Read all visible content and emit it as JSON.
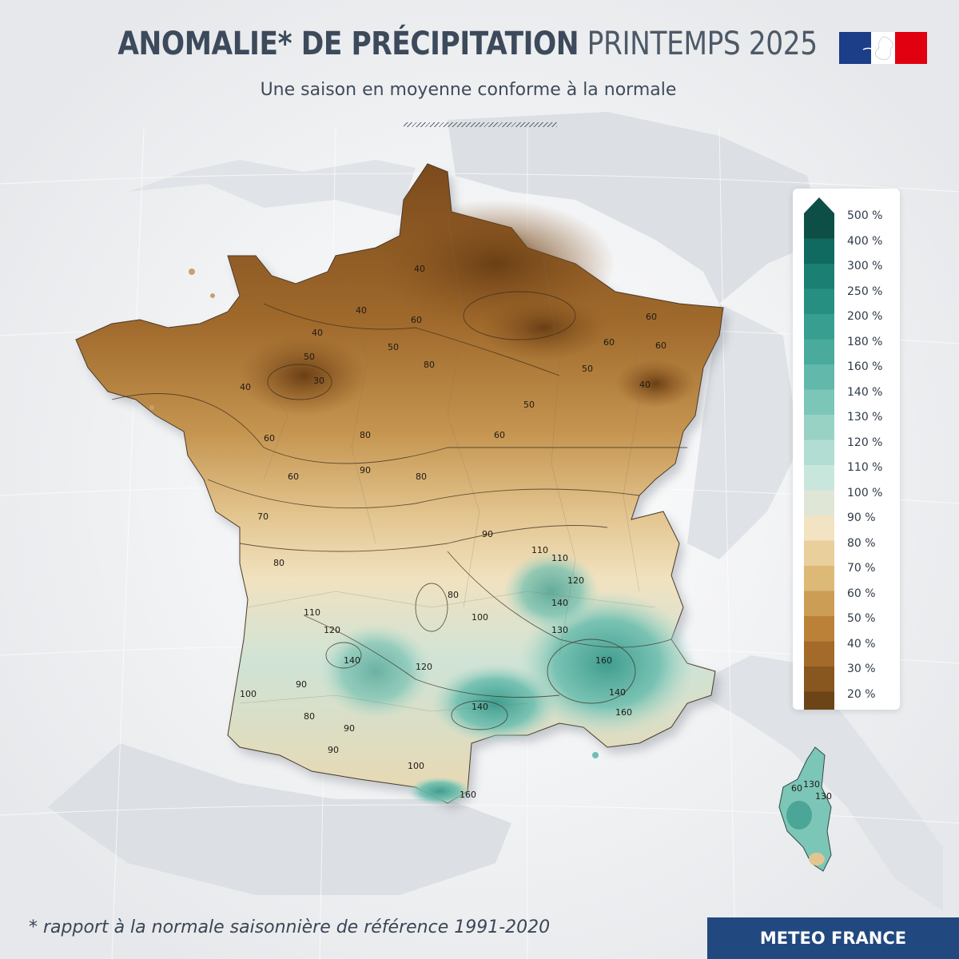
{
  "header": {
    "title_bold": "ANOMALIE* DE PRÉCIPITATION",
    "title_light": "PRINTEMPS 2025",
    "subtitle": "Une saison en moyenne conforme à la normale"
  },
  "legend": {
    "items": [
      {
        "label": "500 %",
        "color": "#0d4f46"
      },
      {
        "label": "400 %",
        "color": "#116a5f"
      },
      {
        "label": "300 %",
        "color": "#1b7f73"
      },
      {
        "label": "250 %",
        "color": "#278f82"
      },
      {
        "label": "200 %",
        "color": "#379e90"
      },
      {
        "label": "180 %",
        "color": "#4aab9d"
      },
      {
        "label": "160 %",
        "color": "#62b8aa"
      },
      {
        "label": "140 %",
        "color": "#7cc6b8"
      },
      {
        "label": "130 %",
        "color": "#98d2c5"
      },
      {
        "label": "120 %",
        "color": "#b2ddd2"
      },
      {
        "label": "110 %",
        "color": "#c9e6dd"
      },
      {
        "label": "100 %",
        "color": "#dfe6d5"
      },
      {
        "label": "90 %",
        "color": "#f2e3c2"
      },
      {
        "label": "80 %",
        "color": "#e8cf9c"
      },
      {
        "label": "70 %",
        "color": "#ddb978"
      },
      {
        "label": "60 %",
        "color": "#cc9d55"
      },
      {
        "label": "50 %",
        "color": "#bc8139"
      },
      {
        "label": "40 %",
        "color": "#a36a29"
      },
      {
        "label": "30 %",
        "color": "#88561f"
      },
      {
        "label": "20 %",
        "color": "#6c4418"
      }
    ]
  },
  "map": {
    "contour_labels": [
      "40",
      "40",
      "40",
      "50",
      "30",
      "40",
      "60",
      "50",
      "60",
      "60",
      "60",
      "50",
      "40",
      "60",
      "50",
      "80",
      "80",
      "60",
      "80",
      "90",
      "60",
      "90",
      "70",
      "80",
      "110",
      "140",
      "120",
      "110",
      "80",
      "100",
      "110",
      "120",
      "140",
      "130",
      "160",
      "140",
      "160",
      "120",
      "140",
      "90",
      "100",
      "80",
      "90",
      "90",
      "100",
      "160",
      "130",
      "60",
      "130"
    ]
  },
  "footnote": "* rapport à la normale saisonnière de référence 1991-2020",
  "brand": "METEO FRANCE",
  "colors": {
    "brand_blue": "#21487f",
    "title_text": "#3c4a5b",
    "flag_blue": "#1c3d88",
    "flag_red": "#e1000f"
  }
}
